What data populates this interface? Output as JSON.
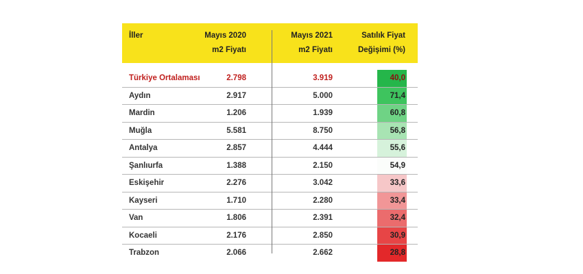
{
  "table": {
    "headers": {
      "city": "İller",
      "may2020_line1": "Mayıs 2020",
      "may2020_line2": "m2 Fiyatı",
      "may2021_line1": "Mayıs 2021",
      "may2021_line2": "m2 Fiyatı",
      "change_line1": "Satılık Fiyat",
      "change_line2": "Değişimi (%)"
    },
    "rows": [
      {
        "city": "Türkiye Ortalaması",
        "may2020": "2.798",
        "may2021": "3.919",
        "change": "40,0",
        "color": "#25b64a"
      },
      {
        "city": "Aydın",
        "may2020": "2.917",
        "may2021": "5.000",
        "change": "71,4",
        "color": "#3ec45e"
      },
      {
        "city": "Mardin",
        "may2020": "1.206",
        "may2021": "1.939",
        "change": "60,8",
        "color": "#6fd385"
      },
      {
        "city": "Muğla",
        "may2020": "5.581",
        "may2021": "8.750",
        "change": "56,8",
        "color": "#a8e4b3"
      },
      {
        "city": "Antalya",
        "may2020": "2.857",
        "may2021": "4.444",
        "change": "55,6",
        "color": "#d6f2db"
      },
      {
        "city": "Şanlıurfa",
        "may2020": "1.388",
        "may2021": "2.150",
        "change": "54,9",
        "color": "#fbfdfb"
      },
      {
        "city": "Eskişehir",
        "may2020": "2.276",
        "may2021": "3.042",
        "change": "33,6",
        "color": "#f6c7c8"
      },
      {
        "city": "Kayseri",
        "may2020": "1.710",
        "may2021": "2.280",
        "change": "33,4",
        "color": "#f19697"
      },
      {
        "city": "Van",
        "may2020": "1.806",
        "may2021": "2.391",
        "change": "32,4",
        "color": "#eb6c6d"
      },
      {
        "city": "Kocaeli",
        "may2020": "2.176",
        "may2021": "2.850",
        "change": "30,9",
        "color": "#e74546"
      },
      {
        "city": "Trabzon",
        "may2020": "2.066",
        "may2021": "2.662",
        "change": "28,8",
        "color": "#e3282a"
      }
    ]
  }
}
